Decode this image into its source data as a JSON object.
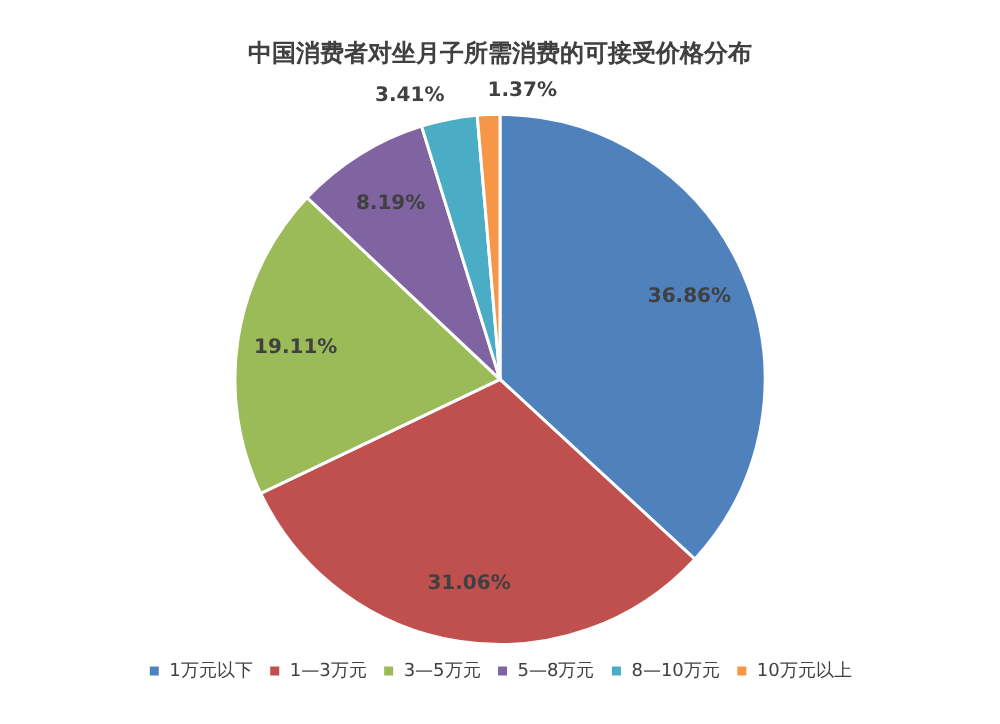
{
  "chart_data": {
    "type": "pie",
    "title": "中国消费者对坐月子所需消费的可接受价格分布",
    "categories": [
      "1万元以下",
      "1—3万元",
      "3—5万元",
      "5—8万元",
      "8—10万元",
      "10万元以上"
    ],
    "values": [
      36.86,
      31.06,
      19.11,
      8.19,
      3.41,
      1.37
    ],
    "colors": [
      "#4f81bd",
      "#c0504d",
      "#9bbb59",
      "#8064a2",
      "#4bacc6",
      "#f79646"
    ],
    "value_labels": [
      "36.86%",
      "31.06%",
      "19.11%",
      "8.19%",
      "3.41%",
      "1.37%"
    ],
    "legend": "bottom"
  }
}
